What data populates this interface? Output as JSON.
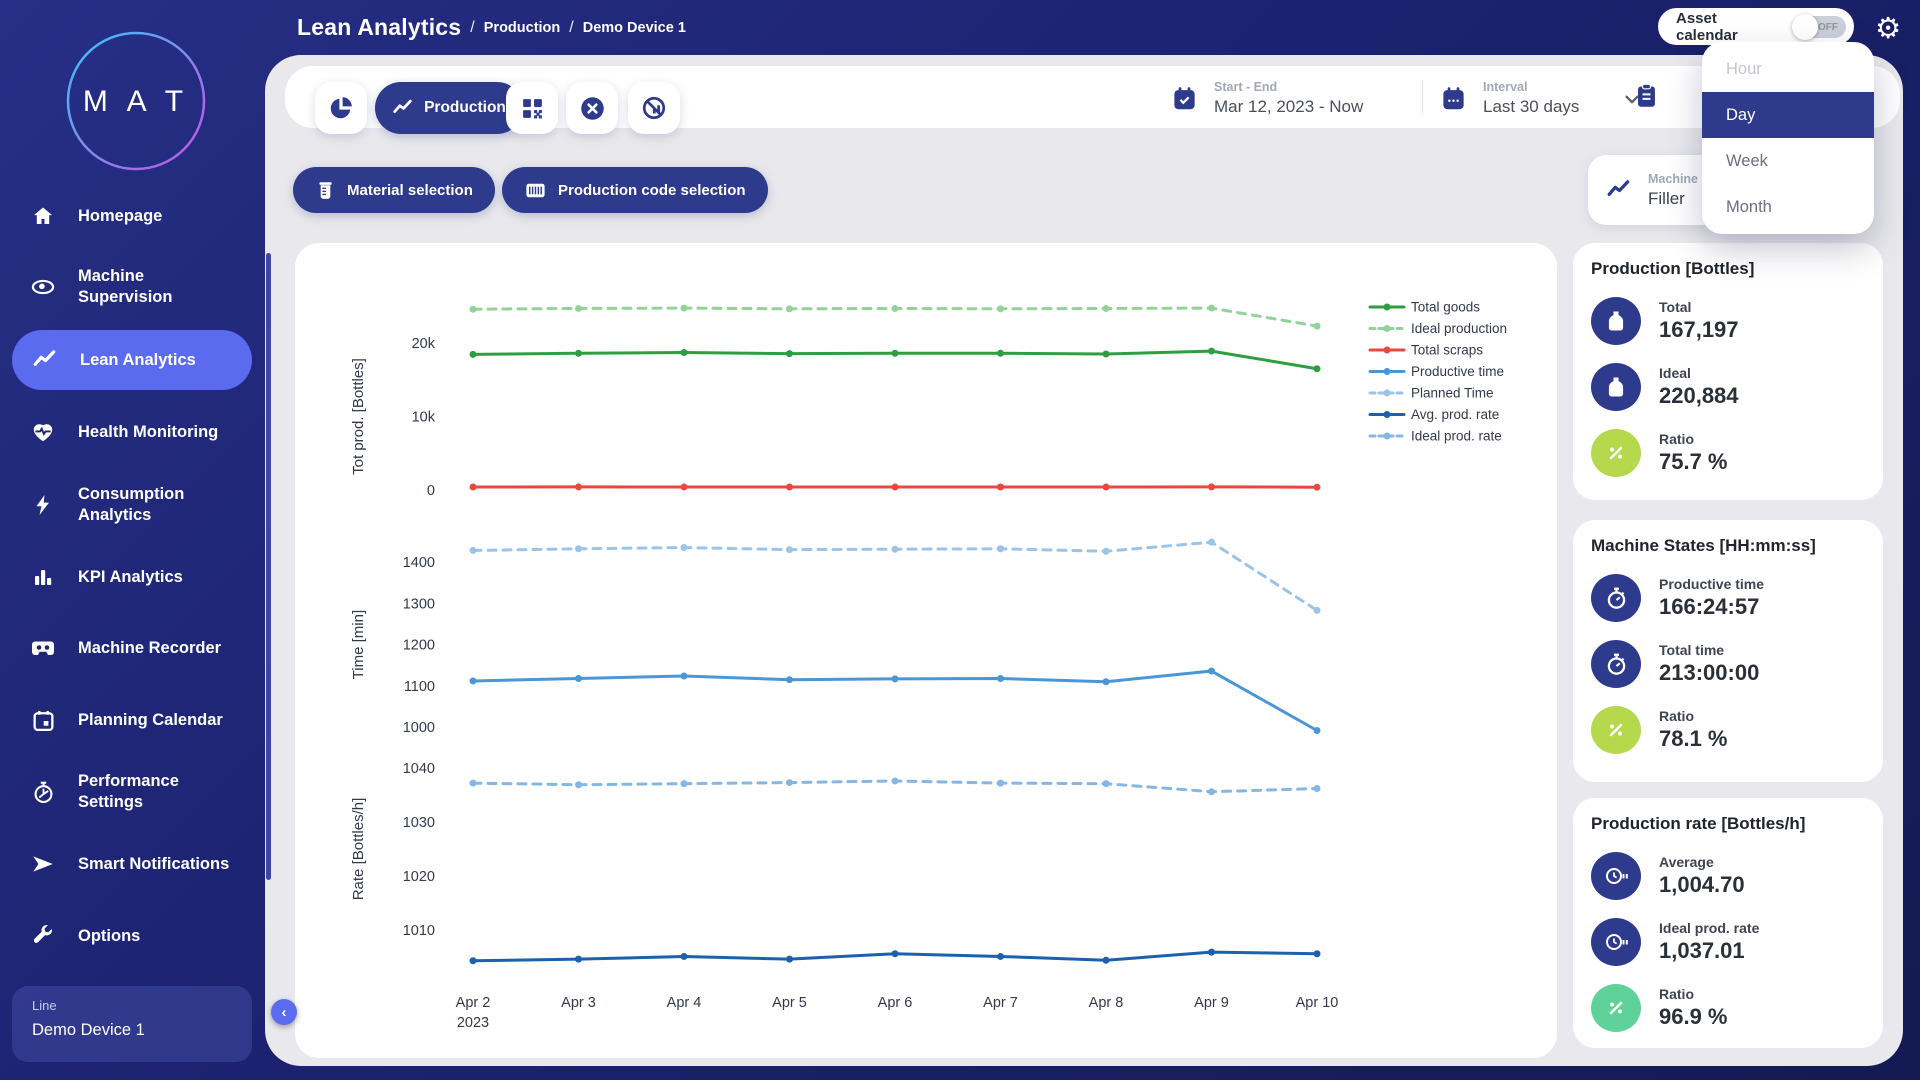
{
  "header": {
    "title": "Lean Analytics",
    "breadcrumbs": [
      "Production",
      "Demo Device 1"
    ],
    "asset_calendar": {
      "label": "Asset calendar",
      "state": "OFF"
    }
  },
  "sidebar": {
    "logo": "M A T",
    "items": [
      {
        "label": "Homepage",
        "icon": "home-icon",
        "active": false
      },
      {
        "label": "Machine Supervision",
        "icon": "eye-icon",
        "active": false
      },
      {
        "label": "Lean Analytics",
        "icon": "trend-icon",
        "active": true
      },
      {
        "label": "Health Monitoring",
        "icon": "heart-pulse-icon",
        "active": false
      },
      {
        "label": "Consumption Analytics",
        "icon": "lightning-icon",
        "active": false
      },
      {
        "label": "KPI Analytics",
        "icon": "bar-chart-icon",
        "active": false
      },
      {
        "label": "Machine Recorder",
        "icon": "cassette-icon",
        "active": false
      },
      {
        "label": "Planning Calendar",
        "icon": "calendar-icon",
        "active": false
      },
      {
        "label": "Performance Settings",
        "icon": "gauge-icon",
        "active": false
      },
      {
        "label": "Smart Notifications",
        "icon": "send-icon",
        "active": false
      },
      {
        "label": "Options",
        "icon": "wrench-icon",
        "active": false
      }
    ],
    "line_card": {
      "label": "Line",
      "value": "Demo Device 1"
    }
  },
  "toolbar": {
    "production_label": "Production",
    "start_end": {
      "label": "Start - End",
      "value": "Mar 12, 2023 - Now"
    },
    "interval": {
      "label": "Interval",
      "value": "Last 30 days"
    }
  },
  "filters": {
    "material_label": "Material selection",
    "production_code_label": "Production code selection",
    "machine": {
      "label": "Machine",
      "value": "Filler"
    }
  },
  "interval_dropdown": {
    "options": [
      {
        "label": "Hour",
        "state": "disabled"
      },
      {
        "label": "Day",
        "state": "selected"
      },
      {
        "label": "Week",
        "state": "normal"
      },
      {
        "label": "Month",
        "state": "normal"
      }
    ]
  },
  "stats": [
    {
      "title": "Production [Bottles]",
      "items": [
        {
          "label": "Total",
          "value": "167,197",
          "icon": "bottle-icon",
          "icon_color": "#2e3a8c"
        },
        {
          "label": "Ideal",
          "value": "220,884",
          "icon": "bottle-icon",
          "icon_color": "#2e3a8c"
        },
        {
          "label": "Ratio",
          "value": "75.7 %",
          "icon": "percent-icon",
          "icon_color": "#b5d84d"
        }
      ]
    },
    {
      "title": "Machine States [HH:mm:ss]",
      "items": [
        {
          "label": "Productive time",
          "value": "166:24:57",
          "icon": "stopwatch-icon",
          "icon_color": "#2e3a8c"
        },
        {
          "label": "Total time",
          "value": "213:00:00",
          "icon": "stopwatch-icon",
          "icon_color": "#2e3a8c"
        },
        {
          "label": "Ratio",
          "value": "78.1 %",
          "icon": "percent-icon",
          "icon_color": "#b5d84d"
        }
      ]
    },
    {
      "title": "Production rate [Bottles/h]",
      "items": [
        {
          "label": "Average",
          "value": "1,004.70",
          "icon": "rate-icon",
          "icon_color": "#2e3a8c"
        },
        {
          "label": "Ideal prod. rate",
          "value": "1,037.01",
          "icon": "rate-icon",
          "icon_color": "#2e3a8c"
        },
        {
          "label": "Ratio",
          "value": "96.9 %",
          "icon": "percent-icon",
          "icon_color": "#5fd29a"
        }
      ]
    }
  ],
  "chart_data": {
    "type": "line",
    "categories": [
      "Apr 2",
      "Apr 3",
      "Apr 4",
      "Apr 5",
      "Apr 6",
      "Apr 7",
      "Apr 8",
      "Apr 9",
      "Apr 10"
    ],
    "first_tick_sublabel": "2023",
    "grid": false,
    "legend_position": "right-top",
    "subplots": [
      {
        "ylabel": "Tot prod. [Bottles]",
        "ylim": [
          0,
          26500
        ],
        "yticks": [
          0,
          10000,
          20000
        ],
        "ytick_labels": [
          "0",
          "10k",
          "20k"
        ],
        "series": [
          {
            "name": "Ideal production",
            "color": "#93d399",
            "dash": true,
            "values": [
              24600,
              24700,
              24750,
              24650,
              24700,
              24650,
              24700,
              24750,
              22300
            ]
          },
          {
            "name": "Total goods",
            "color": "#2f9e41",
            "dash": false,
            "values": [
              18450,
              18600,
              18700,
              18550,
              18600,
              18600,
              18500,
              18900,
              16500
            ]
          },
          {
            "name": "Total scraps",
            "color": "#e8483e",
            "dash": false,
            "values": [
              400,
              420,
              400,
              410,
              400,
              410,
              400,
              430,
              380
            ]
          }
        ]
      },
      {
        "ylabel": "Time [min]",
        "ylim": [
          940,
          1470
        ],
        "yticks": [
          1000,
          1100,
          1200,
          1300,
          1400
        ],
        "series": [
          {
            "name": "Planned Time",
            "color": "#9cc3e8",
            "dash": true,
            "values": [
              1428,
              1432,
              1435,
              1430,
              1431,
              1432,
              1426,
              1448,
              1283
            ]
          },
          {
            "name": "Productive time",
            "color": "#4b96d6",
            "dash": false,
            "values": [
              1112,
              1118,
              1124,
              1115,
              1117,
              1118,
              1110,
              1136,
              992
            ]
          }
        ]
      },
      {
        "ylabel": "Rate [Bottles/h]",
        "ylim": [
          1002,
          1044
        ],
        "yticks": [
          1010,
          1020,
          1030,
          1040
        ],
        "series": [
          {
            "name": "Ideal prod. rate",
            "color": "#85b7e2",
            "dash": true,
            "values": [
              1037.2,
              1036.9,
              1037.1,
              1037.3,
              1037.6,
              1037.2,
              1037.1,
              1035.6,
              1036.2
            ]
          },
          {
            "name": "Avg. prod. rate",
            "color": "#1b61ad",
            "dash": false,
            "values": [
              1004.3,
              1004.6,
              1005.1,
              1004.6,
              1005.6,
              1005.1,
              1004.4,
              1005.9,
              1005.6
            ]
          }
        ]
      }
    ],
    "legend": [
      {
        "label": "Total goods",
        "color": "#2f9e41",
        "dash": false
      },
      {
        "label": "Ideal production",
        "color": "#93d399",
        "dash": true
      },
      {
        "label": "Total scraps",
        "color": "#e8483e",
        "dash": false
      },
      {
        "label": "Productive time",
        "color": "#4b96d6",
        "dash": false
      },
      {
        "label": "Planned Time",
        "color": "#9cc3e8",
        "dash": true
      },
      {
        "label": "Avg. prod. rate",
        "color": "#1b61ad",
        "dash": false
      },
      {
        "label": "Ideal prod. rate",
        "color": "#85b7e2",
        "dash": true
      }
    ]
  }
}
